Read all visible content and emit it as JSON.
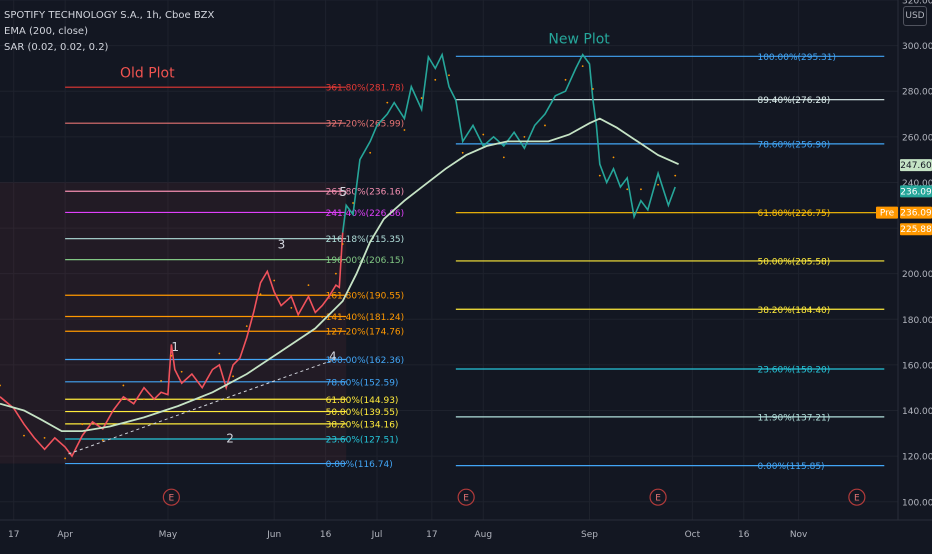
{
  "header": {
    "symbol": "SPOTIFY TECHNOLOGY S.A., 1h, Cboe BZX",
    "ema": "EMA (200, close)",
    "sar": "SAR (0.02, 0.02, 0.2)",
    "currency": "USD"
  },
  "annotations": {
    "old_plot": "Old Plot",
    "new_plot": "New Plot",
    "waves": [
      {
        "label": "1",
        "date": 48,
        "price": 166
      },
      {
        "label": "2",
        "date": 64,
        "price": 126
      },
      {
        "label": "3",
        "date": 79,
        "price": 211
      },
      {
        "label": "4",
        "date": 94,
        "price": 162
      },
      {
        "label": "5",
        "date": 97,
        "price": 234
      }
    ],
    "earnings_label": "E",
    "earnings_dates": [
      48,
      134,
      190,
      248
    ]
  },
  "colors": {
    "background": "#131722",
    "grid": "#1e222d",
    "price_line": "#f0525c",
    "price_line_up": "#26a69a",
    "ema": "#c5e3c5",
    "sar": "#ff9800",
    "axis_text": "#b2b5be"
  },
  "chart_data": {
    "type": "line",
    "title": "SPOTIFY TECHNOLOGY S.A., 1h, Cboe BZX",
    "x_unit": "days since Mar 15",
    "xlim": [
      -2,
      260
    ],
    "ylim": [
      92,
      320
    ],
    "y_ticks": [
      100,
      120,
      140,
      160,
      180,
      200,
      220,
      240,
      260,
      280,
      300,
      320
    ],
    "x_ticks": [
      {
        "label": "17",
        "date": 2
      },
      {
        "label": "Apr",
        "date": 17
      },
      {
        "label": "May",
        "date": 47
      },
      {
        "label": "Jun",
        "date": 78
      },
      {
        "label": "16",
        "date": 93
      },
      {
        "label": "Jul",
        "date": 108
      },
      {
        "label": "17",
        "date": 124
      },
      {
        "label": "Aug",
        "date": 139
      },
      {
        "label": "Sep",
        "date": 170
      },
      {
        "label": "Oct",
        "date": 200
      },
      {
        "label": "16",
        "date": 215
      },
      {
        "label": "Nov",
        "date": 231
      }
    ],
    "series": [
      {
        "name": "Price",
        "points": [
          [
            -2,
            146
          ],
          [
            2,
            141
          ],
          [
            5,
            134
          ],
          [
            8,
            128
          ],
          [
            11,
            123
          ],
          [
            14,
            128
          ],
          [
            17,
            124
          ],
          [
            19,
            120
          ],
          [
            22,
            129
          ],
          [
            25,
            135
          ],
          [
            28,
            132
          ],
          [
            31,
            140
          ],
          [
            34,
            146
          ],
          [
            37,
            143
          ],
          [
            40,
            150
          ],
          [
            43,
            145
          ],
          [
            45,
            148
          ],
          [
            47,
            147
          ],
          [
            48,
            169
          ],
          [
            49,
            158
          ],
          [
            51,
            152
          ],
          [
            54,
            156
          ],
          [
            57,
            150
          ],
          [
            60,
            158
          ],
          [
            62,
            160
          ],
          [
            64,
            150
          ],
          [
            66,
            160
          ],
          [
            68,
            163
          ],
          [
            70,
            172
          ],
          [
            72,
            183
          ],
          [
            74,
            196
          ],
          [
            76,
            201
          ],
          [
            78,
            192
          ],
          [
            80,
            186
          ],
          [
            83,
            190
          ],
          [
            85,
            182
          ],
          [
            88,
            190
          ],
          [
            90,
            183
          ],
          [
            92,
            186
          ],
          [
            94,
            190
          ],
          [
            96,
            195
          ],
          [
            97,
            194
          ],
          [
            98,
            218
          ],
          [
            99,
            230
          ],
          [
            101,
            226
          ],
          [
            103,
            250
          ],
          [
            106,
            258
          ],
          [
            108,
            265
          ],
          [
            111,
            270
          ],
          [
            113,
            275
          ],
          [
            116,
            268
          ],
          [
            118,
            282
          ],
          [
            121,
            272
          ],
          [
            123,
            295
          ],
          [
            125,
            290
          ],
          [
            127,
            296
          ],
          [
            129,
            282
          ],
          [
            131,
            276
          ],
          [
            133,
            258
          ],
          [
            136,
            265
          ],
          [
            139,
            256
          ],
          [
            142,
            260
          ],
          [
            145,
            256
          ],
          [
            148,
            262
          ],
          [
            151,
            255
          ],
          [
            154,
            265
          ],
          [
            157,
            270
          ],
          [
            160,
            278
          ],
          [
            163,
            280
          ],
          [
            166,
            290
          ],
          [
            168,
            296
          ],
          [
            170,
            292
          ],
          [
            171,
            276
          ],
          [
            172,
            265
          ],
          [
            173,
            248
          ],
          [
            175,
            240
          ],
          [
            177,
            246
          ],
          [
            179,
            238
          ],
          [
            181,
            242
          ],
          [
            183,
            225
          ],
          [
            185,
            232
          ],
          [
            187,
            228
          ],
          [
            190,
            244
          ],
          [
            193,
            230
          ],
          [
            195,
            238
          ]
        ]
      },
      {
        "name": "EMA (200, close)",
        "points": [
          [
            -2,
            143
          ],
          [
            5,
            140
          ],
          [
            10,
            136
          ],
          [
            16,
            131
          ],
          [
            22,
            131
          ],
          [
            30,
            133
          ],
          [
            40,
            137
          ],
          [
            50,
            142
          ],
          [
            60,
            148
          ],
          [
            70,
            156
          ],
          [
            80,
            166
          ],
          [
            90,
            176
          ],
          [
            98,
            188
          ],
          [
            102,
            200
          ],
          [
            106,
            214
          ],
          [
            110,
            224
          ],
          [
            116,
            232
          ],
          [
            122,
            239
          ],
          [
            128,
            246
          ],
          [
            134,
            252
          ],
          [
            140,
            256
          ],
          [
            146,
            258
          ],
          [
            152,
            258
          ],
          [
            158,
            258
          ],
          [
            164,
            261
          ],
          [
            170,
            266
          ],
          [
            173,
            268
          ],
          [
            178,
            264
          ],
          [
            184,
            258
          ],
          [
            190,
            252
          ],
          [
            196,
            248
          ]
        ]
      }
    ],
    "fib_levels_old": [
      {
        "label": "0.00%(116.74)",
        "price": 116.74,
        "color": "#42a5f5"
      },
      {
        "label": "23.60%(127.51)",
        "price": 127.51,
        "color": "#26c6da"
      },
      {
        "label": "38.20%(134.16)",
        "price": 134.16,
        "color": "#ffeb3b"
      },
      {
        "label": "50.00%(139.55)",
        "price": 139.55,
        "color": "#ffeb3b"
      },
      {
        "label": "61.80%(144.93)",
        "price": 144.93,
        "color": "#ffeb3b"
      },
      {
        "label": "78.60%(152.59)",
        "price": 152.59,
        "color": "#42a5f5"
      },
      {
        "label": "100.00%(162.36)",
        "price": 162.36,
        "color": "#42a5f5"
      },
      {
        "label": "127.20%(174.76)",
        "price": 174.76,
        "color": "#ff9800"
      },
      {
        "label": "141.40%(181.24)",
        "price": 181.24,
        "color": "#ff9800"
      },
      {
        "label": "161.80%(190.55)",
        "price": 190.55,
        "color": "#ff9800"
      },
      {
        "label": "196.00%(206.15)",
        "price": 206.15,
        "color": "#81c784"
      },
      {
        "label": "216.18%(215.35)",
        "price": 215.35,
        "color": "#b2dfdb"
      },
      {
        "label": "241.40%(226.86)",
        "price": 226.86,
        "color": "#e040fb"
      },
      {
        "label": "261.80%(236.16)",
        "price": 236.16,
        "color": "#f48fb1"
      },
      {
        "label": "327.20%(265.99)",
        "price": 265.99,
        "color": "#e57373"
      },
      {
        "label": "361.80%(281.78)",
        "price": 281.78,
        "color": "#e53935"
      }
    ],
    "fib_levels_new": [
      {
        "label": "0.00%(115.85)",
        "price": 115.85,
        "color": "#42a5f5"
      },
      {
        "label": "11.90%(137.21)",
        "price": 137.21,
        "color": "#b2dfdb"
      },
      {
        "label": "23.60%(158.20)",
        "price": 158.2,
        "color": "#26c6da"
      },
      {
        "label": "38.20%(184.40)",
        "price": 184.4,
        "color": "#ffeb3b"
      },
      {
        "label": "50.00%(205.58)",
        "price": 205.58,
        "color": "#ffeb3b"
      },
      {
        "label": "61.80%(226.75)",
        "price": 226.75,
        "color": "#ffc107"
      },
      {
        "label": "78.60%(256.90)",
        "price": 256.9,
        "color": "#42a5f5"
      },
      {
        "label": "89.40%(276.28)",
        "price": 276.28,
        "color": "#e0f2f1"
      },
      {
        "label": "100.00%(295.31)",
        "price": 295.31,
        "color": "#42a5f5"
      }
    ],
    "price_labels": [
      {
        "label": "247.60",
        "price": 247.6,
        "bg": "#c5e3c5",
        "fg": "#131722"
      },
      {
        "label": "236.09",
        "price": 236.09,
        "bg": "#26a69a",
        "fg": "#ffffff"
      },
      {
        "label": "Pre",
        "price": 226.75,
        "bg": "#ff9800",
        "fg": "#ffffff"
      },
      {
        "label": "236.09",
        "price": 226.75,
        "bg": "#ff9800",
        "fg": "#ffffff"
      },
      {
        "label": "225.88",
        "price": 219.5,
        "bg": "#ff9800",
        "fg": "#ffffff"
      }
    ]
  }
}
